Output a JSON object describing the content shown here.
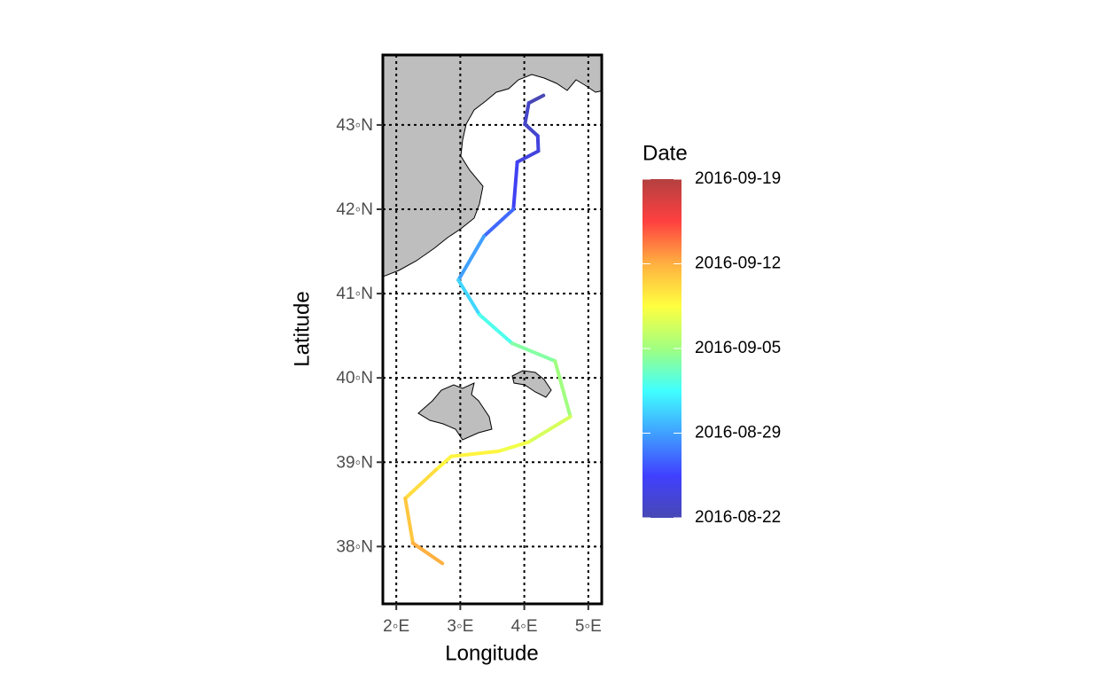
{
  "chart_data": {
    "type": "line",
    "x_label": "Longitude",
    "y_label": "Latitude",
    "xlim": [
      1.79,
      5.21
    ],
    "ylim": [
      37.32,
      43.83
    ],
    "xticks": [
      {
        "value": 2,
        "label": "2◦E"
      },
      {
        "value": 3,
        "label": "3◦E"
      },
      {
        "value": 4,
        "label": "4◦E"
      },
      {
        "value": 5,
        "label": "5◦E"
      }
    ],
    "yticks": [
      {
        "value": 38,
        "label": "38◦N"
      },
      {
        "value": 39,
        "label": "39◦N"
      },
      {
        "value": 40,
        "label": "40◦N"
      },
      {
        "value": 41,
        "label": "41◦N"
      },
      {
        "value": 42,
        "label": "42◦N"
      },
      {
        "value": 43,
        "label": "43◦N"
      }
    ],
    "grid": true,
    "series": [
      {
        "x": [
          4.3,
          4.07,
          4.01,
          4.21,
          4.22,
          3.89,
          3.83,
          3.37,
          2.97,
          3.3,
          3.81,
          4.48,
          4.72,
          4.07,
          3.6,
          2.86,
          2.62,
          2.14,
          2.26,
          2.72
        ],
        "values": [
          43.35,
          43.26,
          43.01,
          42.87,
          42.69,
          42.56,
          42.0,
          41.68,
          41.16,
          40.75,
          40.41,
          40.2,
          39.54,
          39.24,
          39.13,
          39.07,
          38.91,
          38.57,
          38.04,
          37.8
        ],
        "dates": [
          "2016-08-22",
          "2016-08-23",
          "2016-08-23",
          "2016-08-24",
          "2016-08-24",
          "2016-08-25",
          "2016-08-27",
          "2016-08-29",
          "2016-08-31",
          "2016-09-02",
          "2016-09-04",
          "2016-09-05",
          "2016-09-07",
          "2016-09-08",
          "2016-09-09",
          "2016-09-09",
          "2016-09-10",
          "2016-09-11",
          "2016-09-12",
          "2016-09-13"
        ]
      }
    ],
    "colorbar": {
      "title": "Date",
      "lim": [
        "2016-08-22",
        "2016-09-19"
      ],
      "ticks": [
        "2016-08-22",
        "2016-08-29",
        "2016-09-05",
        "2016-09-12",
        "2016-09-19"
      ],
      "colors": [
        "#4848b4",
        "#4040ff",
        "#40a0ff",
        "#40ffff",
        "#a0ff80",
        "#ffff40",
        "#ffb040",
        "#ff4040",
        "#b44040"
      ]
    }
  }
}
